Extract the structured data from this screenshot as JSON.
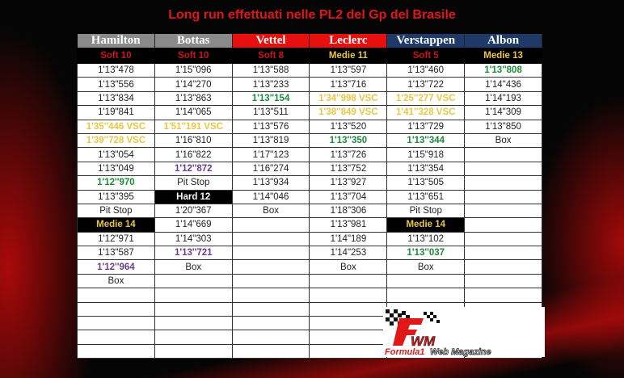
{
  "title": "Long run effettuati nelle PL2 del Gp del Brasile",
  "logo": {
    "text": "FWM",
    "subtitle": "Formula1 Web Magazine"
  },
  "colors": {
    "green": "#1e8a3a",
    "yellow": "#e8c545",
    "purple": "#6b3d8c",
    "soft": "#c8151b",
    "medium": "#e8c545",
    "hard": "#ffffff"
  },
  "columns": [
    {
      "driver": "Hamilton",
      "header_bg": "#8a8a8a",
      "tyre": "Soft 10",
      "tyre_color": "#c8151b",
      "laps": [
        {
          "t": "1'13\"478"
        },
        {
          "t": "1'13\"556"
        },
        {
          "t": "1'13\"834"
        },
        {
          "t": "1'19\"841"
        },
        {
          "t": "1'35''446 VSC",
          "s": "yellow"
        },
        {
          "t": "1'39''728 VSC",
          "s": "yellow"
        },
        {
          "t": "1'13\"054"
        },
        {
          "t": "1'13\"049"
        },
        {
          "t": "1'12''970",
          "s": "green"
        },
        {
          "t": "1'13\"395"
        },
        {
          "t": "Pit Stop"
        },
        {
          "t": "Medie 14",
          "s": "tyre",
          "c": "#e8c545"
        },
        {
          "t": "1'12\"971"
        },
        {
          "t": "1'13\"587"
        },
        {
          "t": "1'12''964",
          "s": "purple"
        },
        {
          "t": "Box"
        }
      ]
    },
    {
      "driver": "Bottas",
      "header_bg": "#8a8a8a",
      "tyre": "Soft 10",
      "tyre_color": "#c8151b",
      "laps": [
        {
          "t": "1'15\"096"
        },
        {
          "t": "1'14\"270"
        },
        {
          "t": "1'13\"863"
        },
        {
          "t": "1'14\"065"
        },
        {
          "t": "1'51''191 VSC",
          "s": "yellow"
        },
        {
          "t": "1'16\"810"
        },
        {
          "t": "1'16\"822"
        },
        {
          "t": "1'12''872",
          "s": "purple"
        },
        {
          "t": "Pit Stop"
        },
        {
          "t": "Hard 12",
          "s": "tyre",
          "c": "#ffffff"
        },
        {
          "t": "1'20\"367"
        },
        {
          "t": "1'14\"669"
        },
        {
          "t": "1'14\"303"
        },
        {
          "t": "1'13''721",
          "s": "purple"
        },
        {
          "t": "Box"
        }
      ]
    },
    {
      "driver": "Vettel",
      "header_bg": "#e8100e",
      "tyre": "Soft 8",
      "tyre_color": "#c8151b",
      "laps": [
        {
          "t": "1'13\"588"
        },
        {
          "t": "1'13\"233"
        },
        {
          "t": "1'13''154",
          "s": "green"
        },
        {
          "t": "1'13\"511"
        },
        {
          "t": "1'13\"576"
        },
        {
          "t": "1'13\"819"
        },
        {
          "t": "1'17\"123"
        },
        {
          "t": "1'16\"274"
        },
        {
          "t": "1'13\"934"
        },
        {
          "t": "1'14\"046"
        },
        {
          "t": "Box"
        }
      ]
    },
    {
      "driver": "Leclerc",
      "header_bg": "#e8100e",
      "tyre": "Medie 11",
      "tyre_color": "#e8c545",
      "laps": [
        {
          "t": "1'13\"597"
        },
        {
          "t": "1'13\"716"
        },
        {
          "t": "1'34''998 VSC",
          "s": "yellow"
        },
        {
          "t": "1'38''849 VSC",
          "s": "yellow"
        },
        {
          "t": "1'13\"520"
        },
        {
          "t": "1'13''350",
          "s": "green"
        },
        {
          "t": "1'13\"726"
        },
        {
          "t": "1'13\"752"
        },
        {
          "t": "1'13\"927"
        },
        {
          "t": "1'13\"704"
        },
        {
          "t": "1'18\"306"
        },
        {
          "t": "1'13\"981"
        },
        {
          "t": "1'14\"189"
        },
        {
          "t": "1'14\"253"
        },
        {
          "t": "Box"
        }
      ]
    },
    {
      "driver": "Verstappen",
      "header_bg": "#1f3a66",
      "tyre": "Soft 5",
      "tyre_color": "#c8151b",
      "laps": [
        {
          "t": "1'13\"460"
        },
        {
          "t": "1'13\"722"
        },
        {
          "t": "1'25''277 VSC",
          "s": "yellow"
        },
        {
          "t": "1'41''328 VSC",
          "s": "yellow"
        },
        {
          "t": "1'13\"729"
        },
        {
          "t": "1'13''344",
          "s": "green"
        },
        {
          "t": "1'15\"918"
        },
        {
          "t": "1'13\"354"
        },
        {
          "t": "1'13\"505"
        },
        {
          "t": "1'13\"651"
        },
        {
          "t": "Pit Stop"
        },
        {
          "t": "Medie 14",
          "s": "tyre",
          "c": "#e8c545"
        },
        {
          "t": "1'13\"102"
        },
        {
          "t": "1'13''037",
          "s": "green"
        },
        {
          "t": "Box"
        }
      ]
    },
    {
      "driver": "Albon",
      "header_bg": "#1f3a66",
      "tyre": "Medie 13",
      "tyre_color": "#e8c545",
      "laps": [
        {
          "t": "1'13''808",
          "s": "green"
        },
        {
          "t": "1'14\"436"
        },
        {
          "t": "1'14\"193"
        },
        {
          "t": "1'14\"309"
        },
        {
          "t": "1'13\"850"
        },
        {
          "t": "Box"
        }
      ]
    }
  ]
}
